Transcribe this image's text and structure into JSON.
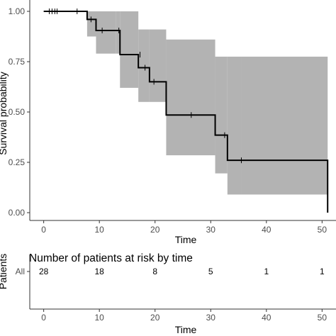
{
  "chart_data": [
    {
      "type": "line",
      "subtype": "kaplan-meier",
      "xlabel": "Time",
      "ylabel": "Survival probability",
      "xlim": [
        -2.5,
        52.5
      ],
      "ylim": [
        0,
        1.0
      ],
      "xticks": [
        0,
        10,
        20,
        30,
        40,
        50
      ],
      "xtick_labels": [
        "0",
        "10",
        "20",
        "30",
        "40",
        "50"
      ],
      "yticks": [
        0,
        0.25,
        0.5,
        0.75,
        1.0
      ],
      "ytick_labels": [
        "0.00",
        "0.25",
        "0.50",
        "0.75",
        "1.00"
      ],
      "grid": false,
      "colors": {
        "line": "#000000",
        "ci": "#b3b3b3",
        "axis": "#333333"
      },
      "series": [
        {
          "steps": [
            {
              "x": 0,
              "y": 1.0,
              "lower": 1.0,
              "upper": 1.0
            },
            {
              "x": 7.8,
              "y": 0.96,
              "lower": 0.875,
              "upper": 1.0
            },
            {
              "x": 9.4,
              "y": 0.905,
              "lower": 0.79,
              "upper": 1.0
            },
            {
              "x": 13.0,
              "y": 0.905,
              "lower": 0.79,
              "upper": 1.0
            },
            {
              "x": 13.7,
              "y": 0.785,
              "lower": 0.62,
              "upper": 1.0
            },
            {
              "x": 17.0,
              "y": 0.72,
              "lower": 0.55,
              "upper": 0.91
            },
            {
              "x": 19.0,
              "y": 0.65,
              "lower": 0.55,
              "upper": 0.91
            },
            {
              "x": 22.0,
              "y": 0.485,
              "lower": 0.285,
              "upper": 0.86
            },
            {
              "x": 30.8,
              "y": 0.385,
              "lower": 0.195,
              "upper": 0.775
            },
            {
              "x": 33.0,
              "y": 0.26,
              "lower": 0.09,
              "upper": 0.775
            },
            {
              "x": 35.5,
              "y": 0.26,
              "lower": 0.09,
              "upper": 0.775
            },
            {
              "x": 51.0,
              "y": 0.0
            }
          ],
          "end_x": 51.0,
          "censored": [
            {
              "x": 1.0,
              "y": 1.0
            },
            {
              "x": 1.5,
              "y": 1.0
            },
            {
              "x": 2.0,
              "y": 1.0
            },
            {
              "x": 2.4,
              "y": 1.0
            },
            {
              "x": 6.0,
              "y": 1.0
            },
            {
              "x": 8.5,
              "y": 0.96
            },
            {
              "x": 10.5,
              "y": 0.905
            },
            {
              "x": 13.5,
              "y": 0.905
            },
            {
              "x": 17.3,
              "y": 0.785
            },
            {
              "x": 18.2,
              "y": 0.72
            },
            {
              "x": 19.8,
              "y": 0.65
            },
            {
              "x": 26.5,
              "y": 0.485
            },
            {
              "x": 32.5,
              "y": 0.385
            },
            {
              "x": 35.5,
              "y": 0.26
            }
          ]
        }
      ]
    },
    {
      "type": "table",
      "title": "Number of patients at risk by time",
      "xlabel": "Time",
      "ylabel": "Patients",
      "row_label": "All",
      "x": [
        0,
        10,
        20,
        30,
        40,
        50
      ],
      "xtick_labels": [
        "0",
        "10",
        "20",
        "30",
        "40",
        "50"
      ],
      "values": [
        28,
        18,
        8,
        5,
        1,
        1
      ],
      "value_labels": [
        "28",
        "18",
        "8",
        "5",
        "1",
        "1"
      ]
    }
  ]
}
